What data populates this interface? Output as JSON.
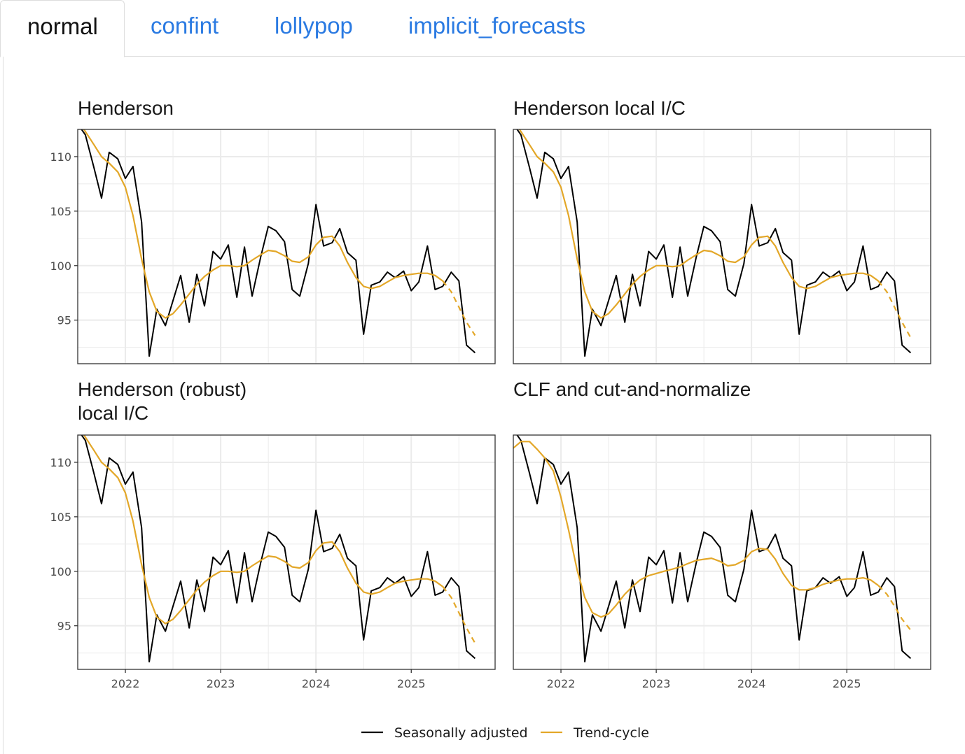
{
  "tabs": [
    {
      "label": "normal",
      "active": true
    },
    {
      "label": "confint",
      "active": false
    },
    {
      "label": "lollypop",
      "active": false
    },
    {
      "label": "implicit_forecasts",
      "active": false
    }
  ],
  "colors": {
    "seasonally_adjusted": "#000000",
    "trend_cycle": "#e3a728",
    "grid": "#ebebeb",
    "frame": "#333333"
  },
  "chart_data": {
    "type": "line",
    "x_ticks": [
      2022,
      2023,
      2024,
      2025
    ],
    "xlim": [
      2021.5,
      2025.88
    ],
    "y_ticks": [
      95,
      100,
      105,
      110
    ],
    "ylim": [
      91.0,
      112.5
    ],
    "legend": {
      "placement": "bottom",
      "entries": [
        "Seasonally adjusted",
        "Trend-cycle"
      ]
    },
    "x": [
      2021.5,
      2021.58,
      2021.67,
      2021.75,
      2021.83,
      2021.92,
      2022.0,
      2022.08,
      2022.17,
      2022.25,
      2022.33,
      2022.42,
      2022.5,
      2022.58,
      2022.67,
      2022.75,
      2022.83,
      2022.92,
      2023.0,
      2023.08,
      2023.17,
      2023.25,
      2023.33,
      2023.42,
      2023.5,
      2023.58,
      2023.67,
      2023.75,
      2023.83,
      2023.92,
      2024.0,
      2024.08,
      2024.17,
      2024.25,
      2024.33,
      2024.42,
      2024.5,
      2024.58,
      2024.67,
      2024.75,
      2024.83,
      2024.92,
      2025.0,
      2025.08,
      2025.17,
      2025.25,
      2025.33,
      2025.42,
      2025.5,
      2025.58,
      2025.67
    ],
    "seasonally_adjusted": [
      113.0,
      112.0,
      109.0,
      106.2,
      110.4,
      109.8,
      108.0,
      109.1,
      104.0,
      91.7,
      96.0,
      94.5,
      96.8,
      99.1,
      94.8,
      99.2,
      96.3,
      101.3,
      100.6,
      101.9,
      97.1,
      101.7,
      97.2,
      100.8,
      103.6,
      103.2,
      102.2,
      97.8,
      97.2,
      100.2,
      105.6,
      101.8,
      102.1,
      103.4,
      101.2,
      100.5,
      93.7,
      98.2,
      98.5,
      99.4,
      98.9,
      99.5,
      97.7,
      98.5,
      101.8,
      97.8,
      98.1,
      99.4,
      98.6,
      92.7,
      92.0
    ],
    "series": [
      {
        "panel_title": "Henderson",
        "trend_cycle": [
          113.4,
          112.3,
          111.1,
          110.0,
          109.4,
          108.6,
          107.2,
          104.6,
          100.6,
          97.6,
          95.8,
          95.2,
          95.6,
          96.4,
          97.4,
          98.3,
          99.0,
          99.6,
          100.0,
          100.0,
          99.9,
          100.0,
          100.5,
          101.0,
          101.4,
          101.3,
          100.9,
          100.4,
          100.3,
          100.8,
          101.9,
          102.6,
          102.7,
          101.8,
          100.3,
          98.9,
          98.1,
          97.9,
          98.1,
          98.5,
          98.9,
          99.1,
          99.2,
          99.3,
          99.3,
          99.1,
          98.6
        ],
        "trend_cycle_forecast": [
          98.6,
          97.6,
          96.2,
          94.8,
          93.6
        ]
      },
      {
        "panel_title": "Henderson local I/C",
        "trend_cycle": [
          113.4,
          112.3,
          111.1,
          110.0,
          109.4,
          108.6,
          107.2,
          104.6,
          100.6,
          97.6,
          95.8,
          95.2,
          95.6,
          96.4,
          97.4,
          98.3,
          99.0,
          99.6,
          100.0,
          100.0,
          99.9,
          100.0,
          100.5,
          101.0,
          101.4,
          101.3,
          100.9,
          100.4,
          100.3,
          100.8,
          101.9,
          102.6,
          102.7,
          101.8,
          100.3,
          98.9,
          98.1,
          97.9,
          98.1,
          98.5,
          98.9,
          99.1,
          99.2,
          99.3,
          99.3,
          99.1,
          98.6
        ],
        "trend_cycle_forecast": [
          98.6,
          97.6,
          96.2,
          94.8,
          93.4
        ]
      },
      {
        "panel_title": "Henderson (robust)\nlocal I/C",
        "trend_cycle": [
          113.4,
          112.3,
          111.1,
          110.0,
          109.4,
          108.6,
          107.2,
          104.6,
          100.6,
          97.6,
          95.8,
          95.2,
          95.6,
          96.4,
          97.4,
          98.3,
          99.0,
          99.6,
          100.0,
          100.0,
          99.9,
          100.0,
          100.5,
          101.0,
          101.4,
          101.3,
          100.9,
          100.4,
          100.3,
          100.8,
          101.9,
          102.6,
          102.7,
          101.8,
          100.3,
          98.9,
          98.1,
          97.9,
          98.1,
          98.5,
          98.9,
          99.1,
          99.2,
          99.3,
          99.3,
          99.1,
          98.6
        ],
        "trend_cycle_forecast": [
          98.6,
          97.6,
          96.2,
          94.8,
          93.4
        ]
      },
      {
        "panel_title": "CLF and cut-and-normalize",
        "trend_cycle": [
          111.3,
          111.9,
          111.9,
          111.2,
          110.4,
          109.2,
          106.8,
          103.8,
          100.1,
          97.6,
          96.2,
          95.8,
          96.1,
          96.9,
          97.9,
          98.6,
          99.2,
          99.6,
          99.8,
          100.0,
          100.2,
          100.4,
          100.7,
          101.0,
          101.1,
          101.2,
          100.9,
          100.5,
          100.6,
          101.0,
          101.8,
          102.1,
          102.0,
          101.1,
          99.8,
          98.7,
          98.3,
          98.3,
          98.5,
          98.8,
          99.0,
          99.2,
          99.3,
          99.3,
          99.4,
          99.2,
          98.7
        ],
        "trend_cycle_forecast": [
          98.7,
          97.9,
          96.8,
          95.6,
          94.6
        ]
      }
    ]
  }
}
